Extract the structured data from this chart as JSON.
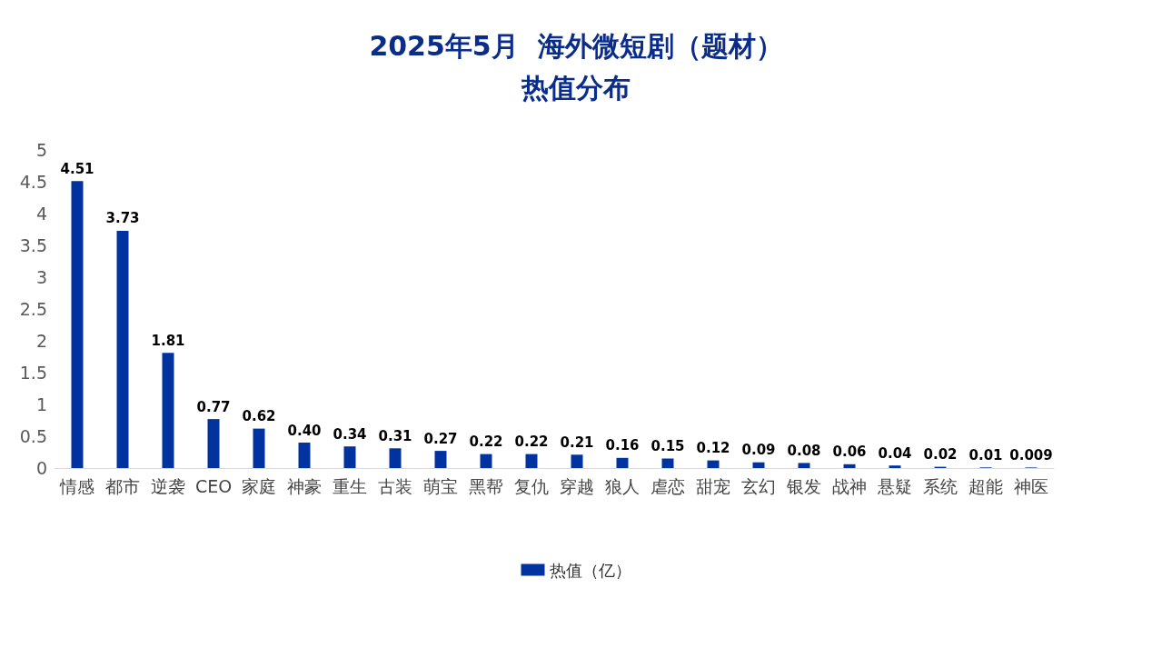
{
  "chart_data": {
    "type": "bar",
    "title": "2025年5月  海外微短剧（题材）",
    "subtitle": "热值分布",
    "categories": [
      "情感",
      "都市",
      "逆袭",
      "CEO",
      "家庭",
      "神豪",
      "重生",
      "古装",
      "萌宝",
      "黑帮",
      "复仇",
      "穿越",
      "狼人",
      "虐恋",
      "甜宠",
      "玄幻",
      "银发",
      "战神",
      "悬疑",
      "系统",
      "超能",
      "神医"
    ],
    "series": [
      {
        "name": "热值（亿）",
        "color": "#0033a0",
        "values": [
          4.51,
          3.73,
          1.81,
          0.77,
          0.62,
          0.4,
          0.34,
          0.31,
          0.27,
          0.22,
          0.22,
          0.21,
          0.16,
          0.15,
          0.12,
          0.09,
          0.08,
          0.06,
          0.04,
          0.02,
          0.01,
          0.009
        ],
        "value_labels": [
          "4.51",
          "3.73",
          "1.81",
          "0.77",
          "0.62",
          "0.40",
          "0.34",
          "0.31",
          "0.27",
          "0.22",
          "0.22",
          "0.21",
          "0.16",
          "0.15",
          "0.12",
          "0.09",
          "0.08",
          "0.06",
          "0.04",
          "0.02",
          "0.01",
          "0.009"
        ]
      }
    ],
    "ylim": [
      0,
      5
    ],
    "yticks": [
      0,
      0.5,
      1,
      1.5,
      2,
      2.5,
      3,
      3.5,
      4,
      4.5,
      5
    ],
    "grid": false,
    "legend": "bottom"
  }
}
